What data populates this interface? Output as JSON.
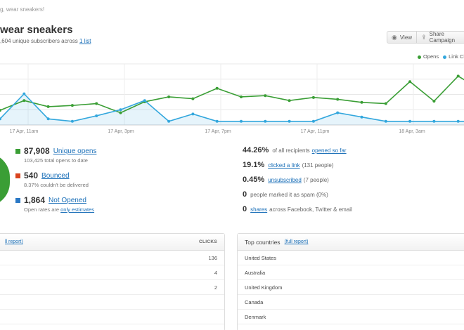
{
  "breadcrumb": "g, wear sneakers!",
  "campaign": {
    "title": "wear sneakers",
    "subline_prefix": ",604 unique subscribers across",
    "subline_link": "1 list"
  },
  "toolbar": {
    "view_label": "View",
    "share_label": "Share Campaign"
  },
  "legend": [
    {
      "label": "Opens",
      "color": "#3a9e35"
    },
    {
      "label": "Link Clicks",
      "color": "#33a7dd"
    }
  ],
  "chart_data": {
    "type": "line",
    "x_tick_labels": [
      "17 Apr, 11am",
      "17 Apr, 3pm",
      "17 Apr, 7pm",
      "17 Apr, 11pm",
      "18 Apr, 3am"
    ],
    "grid": true,
    "legend_position": "top-right",
    "series": [
      {
        "name": "Opens",
        "color": "#3a9e35",
        "values": [
          24,
          40,
          30,
          32,
          35,
          20,
          38,
          46,
          43,
          60,
          46,
          48,
          40,
          45,
          42,
          37,
          35,
          71,
          39,
          80,
          56,
          63,
          45
        ]
      },
      {
        "name": "Link Clicks",
        "color": "#33a7dd",
        "values": [
          10,
          51,
          10,
          6,
          15,
          25,
          40,
          6,
          18,
          6,
          6,
          6,
          6,
          6,
          20,
          13,
          6,
          6,
          6,
          6,
          6,
          6,
          6
        ]
      }
    ],
    "ylim": [
      0,
      100
    ]
  },
  "left_stats": [
    {
      "value": "87,908",
      "link": "Unique opens",
      "sub": "103,425 total opens to date",
      "color": "#3a9e35"
    },
    {
      "value": "540",
      "link": "Bounced",
      "sub": "8.37% couldn't be delivered",
      "color": "#d9431e"
    },
    {
      "value": "1,864",
      "link": "Not Opened",
      "sub_prefix": "Open rates are",
      "sub_link": "only estimates",
      "color": "#2a78c5"
    }
  ],
  "right_stats": [
    {
      "value": "44.26%",
      "text": "of all recipients",
      "link": "opened so far",
      "after": ""
    },
    {
      "value": "19.1%",
      "text": "",
      "link": "clicked a link",
      "after": "(131 people)"
    },
    {
      "value": "0.45%",
      "text": "",
      "link": "unsubscribed",
      "after": "(7 people)"
    },
    {
      "value": "0",
      "text": "people marked it as spam (0%)",
      "link": "",
      "after": ""
    },
    {
      "value": "0",
      "text": "",
      "link": "shares",
      "after": "across Facebook, Twitter & email"
    }
  ],
  "links_panel": {
    "full_report": "ll report)",
    "clicks_header": "CLICKS",
    "rows": [
      {
        "label": "",
        "value": "136"
      },
      {
        "label": "",
        "value": "4"
      },
      {
        "label": "",
        "value": "2"
      },
      {
        "label": "",
        "value": ""
      },
      {
        "label": "",
        "value": ""
      }
    ]
  },
  "countries_panel": {
    "title": "Top countries",
    "full_report": "(full report)",
    "rows": [
      "United States",
      "Australia",
      "United Kingdom",
      "Canada",
      "Denmark"
    ]
  }
}
